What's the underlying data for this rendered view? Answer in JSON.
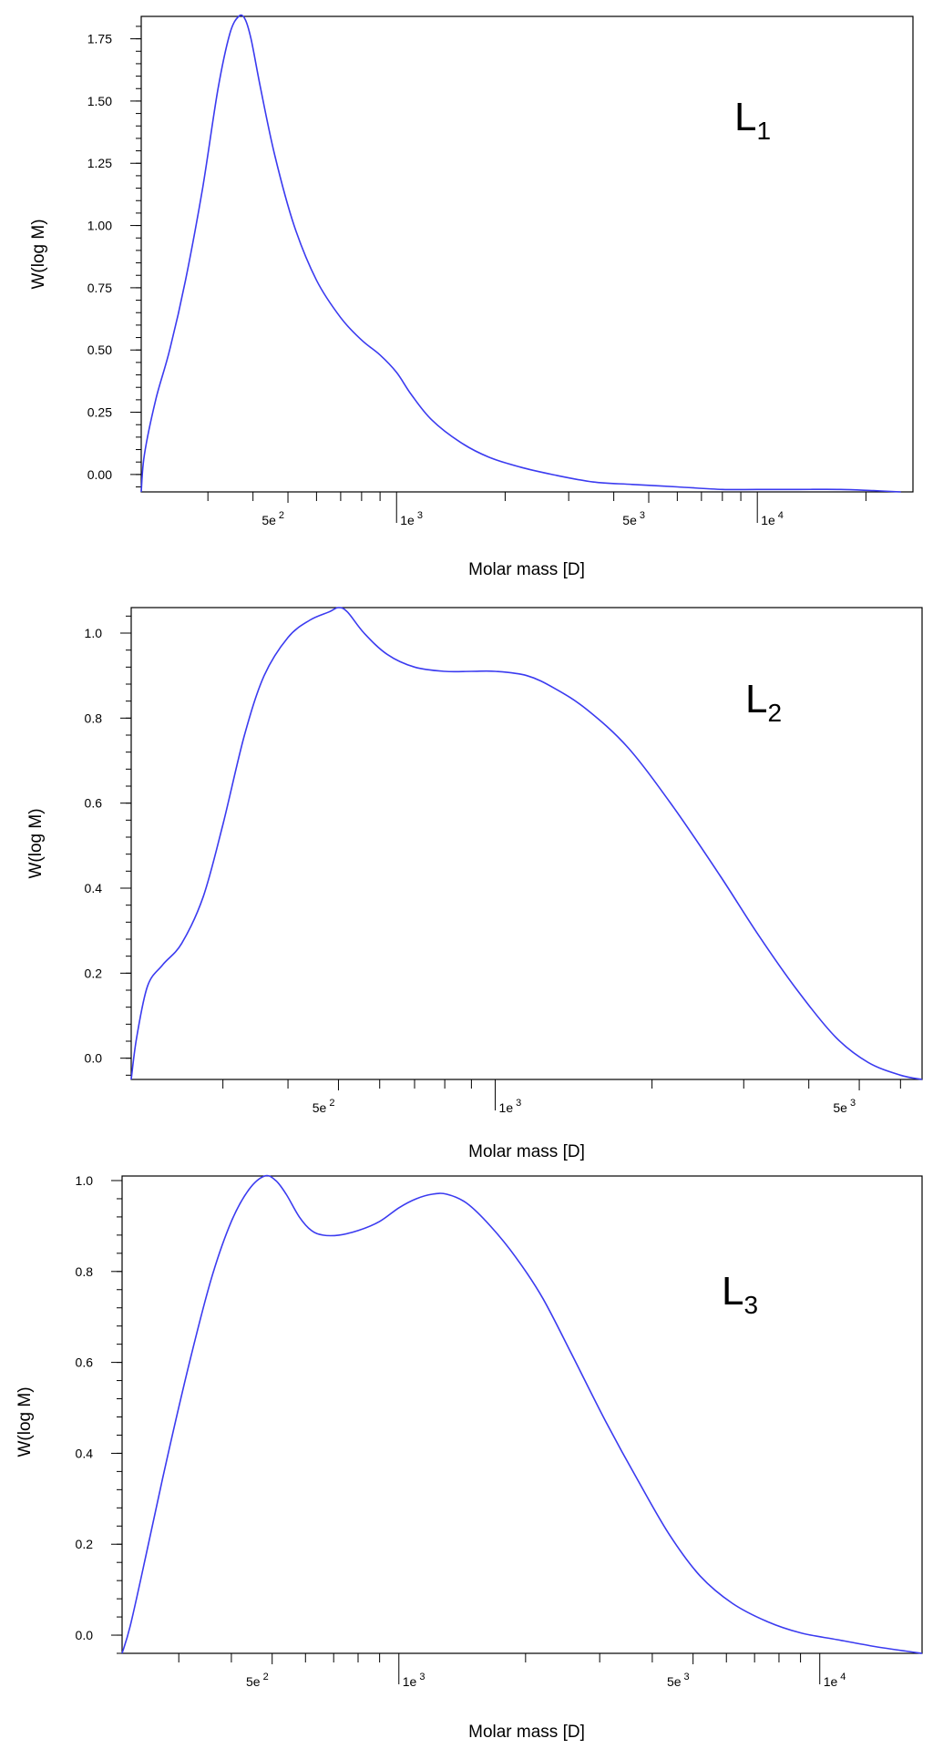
{
  "chart_data": [
    {
      "type": "line",
      "panel_label": "L",
      "panel_label_sub": "1",
      "xlabel": "Molar mass [D]",
      "ylabel": "W(log M)",
      "x_scale": "log",
      "xlim": [
        196,
        27000
      ],
      "ylim": [
        -0.07,
        1.84
      ],
      "yticks": [
        0.0,
        0.25,
        0.5,
        0.75,
        1.0,
        1.25,
        1.5,
        1.75
      ],
      "ytick_labels": [
        "0.00",
        "0.25",
        "0.50",
        "0.75",
        "1.00",
        "1.25",
        "1.50",
        "1.75"
      ],
      "yminor_step": 0.05,
      "xticks_labeled": [
        {
          "value": 500,
          "mantissa": "5e",
          "exp": "2"
        },
        {
          "value": 1000,
          "mantissa": "1e",
          "exp": "3"
        },
        {
          "value": 5000,
          "mantissa": "5e",
          "exp": "3"
        },
        {
          "value": 10000,
          "mantissa": "1e",
          "exp": "4"
        }
      ],
      "xticks_minor": [
        300,
        400,
        600,
        700,
        800,
        900,
        2000,
        3000,
        4000,
        6000,
        7000,
        8000,
        9000,
        20000
      ],
      "color": "#3b3bf0",
      "series": [
        {
          "x": [
            196,
            200,
            215,
            235,
            260,
            290,
            320,
            345,
            365,
            380,
            395,
            420,
            460,
            520,
            600,
            700,
            800,
            900,
            1000,
            1100,
            1250,
            1500,
            1800,
            2200,
            2700,
            3500,
            4500,
            6000,
            8000,
            10000,
            13000,
            17000,
            21000,
            25000
          ],
          "y": [
            -0.07,
            0.08,
            0.3,
            0.5,
            0.78,
            1.15,
            1.55,
            1.77,
            1.84,
            1.83,
            1.75,
            1.55,
            1.28,
            1.0,
            0.78,
            0.63,
            0.54,
            0.48,
            0.41,
            0.32,
            0.22,
            0.13,
            0.07,
            0.03,
            0.0,
            -0.03,
            -0.04,
            -0.05,
            -0.06,
            -0.06,
            -0.06,
            -0.06,
            -0.065,
            -0.07
          ]
        }
      ]
    },
    {
      "type": "line",
      "panel_label": "L",
      "panel_label_sub": "2",
      "xlabel": "Molar mass [D]",
      "ylabel": "W(log M)",
      "x_scale": "log",
      "xlim": [
        200,
        6600
      ],
      "ylim": [
        -0.05,
        1.06
      ],
      "yticks": [
        0.0,
        0.2,
        0.4,
        0.6,
        0.8,
        1.0
      ],
      "ytick_labels": [
        "0.0",
        "0.2",
        "0.4",
        "0.6",
        "0.8",
        "1.0"
      ],
      "yminor_step": 0.04,
      "xticks_labeled": [
        {
          "value": 500,
          "mantissa": "5e",
          "exp": "2"
        },
        {
          "value": 1000,
          "mantissa": "1e",
          "exp": "3"
        },
        {
          "value": 5000,
          "mantissa": "5e",
          "exp": "3"
        }
      ],
      "xticks_minor": [
        300,
        400,
        600,
        700,
        800,
        900,
        2000,
        3000,
        4000,
        6000
      ],
      "color": "#3b3bf0",
      "series": [
        {
          "x": [
            200,
            205,
            215,
            230,
            250,
            275,
            300,
            330,
            360,
            400,
            440,
            480,
            500,
            520,
            560,
            620,
            700,
            800,
            900,
            1000,
            1150,
            1300,
            1500,
            1800,
            2200,
            2700,
            3200,
            3800,
            4500,
            5200,
            6000,
            6600
          ],
          "y": [
            -0.05,
            0.05,
            0.17,
            0.22,
            0.27,
            0.38,
            0.55,
            0.76,
            0.9,
            0.99,
            1.03,
            1.05,
            1.06,
            1.05,
            1.0,
            0.95,
            0.92,
            0.91,
            0.91,
            0.91,
            0.9,
            0.87,
            0.82,
            0.73,
            0.59,
            0.43,
            0.29,
            0.16,
            0.05,
            -0.01,
            -0.04,
            -0.05
          ]
        }
      ]
    },
    {
      "type": "line",
      "panel_label": "L",
      "panel_label_sub": "3",
      "xlabel": "Molar mass [D]",
      "ylabel": "W(log M)",
      "x_scale": "log",
      "xlim": [
        220,
        17500
      ],
      "ylim": [
        -0.04,
        1.01
      ],
      "yticks": [
        0.0,
        0.2,
        0.4,
        0.6,
        0.8,
        1.0
      ],
      "ytick_labels": [
        "0.0",
        "0.2",
        "0.4",
        "0.6",
        "0.8",
        "1.0"
      ],
      "yminor_step": 0.04,
      "xticks_labeled": [
        {
          "value": 500,
          "mantissa": "5e",
          "exp": "2"
        },
        {
          "value": 1000,
          "mantissa": "1e",
          "exp": "3"
        },
        {
          "value": 5000,
          "mantissa": "5e",
          "exp": "3"
        },
        {
          "value": 10000,
          "mantissa": "1e",
          "exp": "4"
        }
      ],
      "xticks_minor": [
        300,
        400,
        600,
        700,
        800,
        900,
        2000,
        3000,
        4000,
        6000,
        7000,
        8000,
        9000
      ],
      "color": "#3b3bf0",
      "series": [
        {
          "x": [
            220,
            230,
            250,
            280,
            320,
            360,
            400,
            440,
            480,
            510,
            540,
            580,
            620,
            660,
            720,
            800,
            900,
            1000,
            1100,
            1200,
            1300,
            1450,
            1650,
            1900,
            2200,
            2600,
            3100,
            3700,
            4400,
            5200,
            6200,
            7500,
            9000,
            11000,
            13500,
            16000,
            17500
          ],
          "y": [
            -0.04,
            0.02,
            0.17,
            0.38,
            0.61,
            0.79,
            0.91,
            0.98,
            1.01,
            1.0,
            0.97,
            0.92,
            0.89,
            0.88,
            0.88,
            0.89,
            0.91,
            0.94,
            0.96,
            0.97,
            0.97,
            0.95,
            0.9,
            0.83,
            0.74,
            0.61,
            0.47,
            0.34,
            0.22,
            0.13,
            0.07,
            0.03,
            0.005,
            -0.01,
            -0.025,
            -0.035,
            -0.04
          ]
        }
      ]
    }
  ]
}
